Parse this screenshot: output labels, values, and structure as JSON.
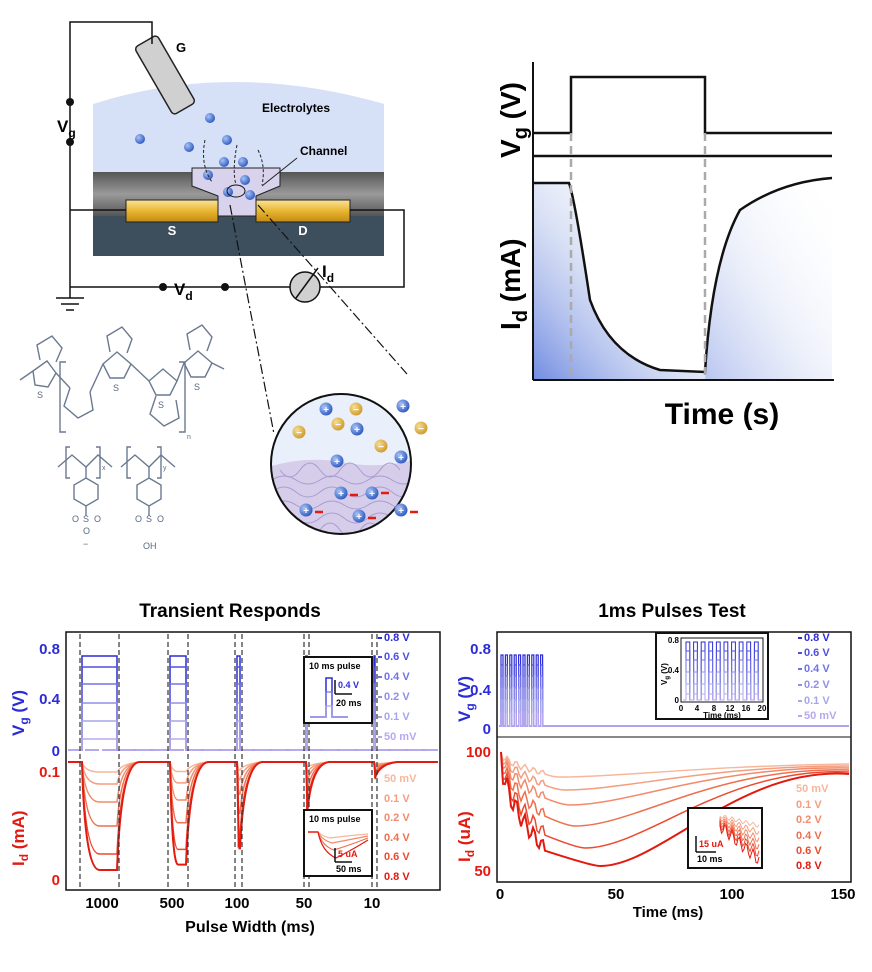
{
  "schematic": {
    "gate_label": "G",
    "vg_label": "V",
    "vg_sub": "g",
    "electrolyte_label": "Electrolytes",
    "channel_label": "Channel",
    "source_label": "S",
    "drain_label": "D",
    "vd_label": "V",
    "vd_sub": "d",
    "id_label": "I",
    "id_sub": "d"
  },
  "chemistry": {
    "sulfur_label": "S",
    "subscript_n": "n",
    "subscript_x": "x",
    "subscript_y": "y",
    "sulfonate_labels": [
      "O",
      "S",
      "O",
      "O",
      "O",
      "S",
      "O",
      "OH"
    ],
    "charge_minus": "−"
  },
  "zoom": {
    "plus": "+",
    "minus": "−"
  },
  "waveform": {
    "ylabel_top": "V",
    "ylabel_top_sub": "g",
    "ylabel_top_unit": " (V)",
    "ylabel_bottom": "I",
    "ylabel_bottom_sub": "d",
    "ylabel_bottom_unit": " (mA)",
    "xlabel": "Time (s)"
  },
  "transient": {
    "title": "Transient Responds",
    "xlabel": "Pulse Width (ms)",
    "vg_axis_label": "V",
    "vg_axis_sub": "g",
    "vg_axis_unit": " (V)",
    "id_axis_label": "I",
    "id_axis_sub": "d",
    "id_axis_unit": " (mA)",
    "vg_ticks": [
      "0.8",
      "0.4",
      "0"
    ],
    "id_ticks": [
      "0.1",
      "0"
    ],
    "x_ticks": [
      "1000",
      "500",
      "100",
      "50",
      "10"
    ],
    "vg_legend": [
      "0.8 V",
      "0.6 V",
      "0.4 V",
      "0.2 V",
      "0.1 V",
      "50 mV"
    ],
    "id_legend": [
      "50 mV",
      "0.1 V",
      "0.2 V",
      "0.4 V",
      "0.6 V",
      "0.8 V"
    ],
    "inset_top_title": "10 ms pulse",
    "inset_top_scale_v": "0.4 V",
    "inset_top_scale_t": "20 ms",
    "inset_bottom_title": "10 ms pulse",
    "inset_bottom_scale_i": "5 uA",
    "inset_bottom_scale_t": "50 ms"
  },
  "pulses": {
    "title": "1ms Pulses Test",
    "xlabel": "Time (ms)",
    "vg_axis_label": "V",
    "vg_axis_sub": "g",
    "vg_axis_unit": " (V)",
    "id_axis_label": "I",
    "id_axis_sub": "d",
    "id_axis_unit": " (uA)",
    "vg_ticks": [
      "0.8",
      "0.4",
      "0"
    ],
    "id_ticks": [
      "100",
      "50"
    ],
    "x_ticks": [
      "0",
      "50",
      "100",
      "150"
    ],
    "vg_legend": [
      "0.8 V",
      "0.6 V",
      "0.4 V",
      "0.2 V",
      "0.1 V",
      "50 mV"
    ],
    "id_legend": [
      "50 mV",
      "0.1 V",
      "0.2 V",
      "0.4 V",
      "0.6 V",
      "0.8 V"
    ],
    "inset_top_ylabel": "V",
    "inset_top_ysub": "g",
    "inset_top_yunit": " (V)",
    "inset_top_xlabel": "Time (ms)",
    "inset_top_yticks": [
      "0.8",
      "0.4",
      "0"
    ],
    "inset_top_xticks": [
      "0",
      "4",
      "8",
      "12",
      "16",
      "20"
    ],
    "inset_bottom_scale_i": "15 uA",
    "inset_bottom_scale_t": "10 ms"
  },
  "colors": {
    "blue_series": [
      "#2b2bd8",
      "#4f4fe0",
      "#7272e6",
      "#8f8fe9",
      "#a6a6ec",
      "#b8a8f0"
    ],
    "red_series": [
      "#f7b79c",
      "#f59d7f",
      "#f28a6b",
      "#ef6f4f",
      "#ec4a2e",
      "#e21a10"
    ],
    "electrolyte": "#d6e1f7",
    "gold": "#e8b630",
    "substrate": "#3d4e5d",
    "ion_blue": "#4a78d8",
    "ion_gold": "#e3b450"
  }
}
